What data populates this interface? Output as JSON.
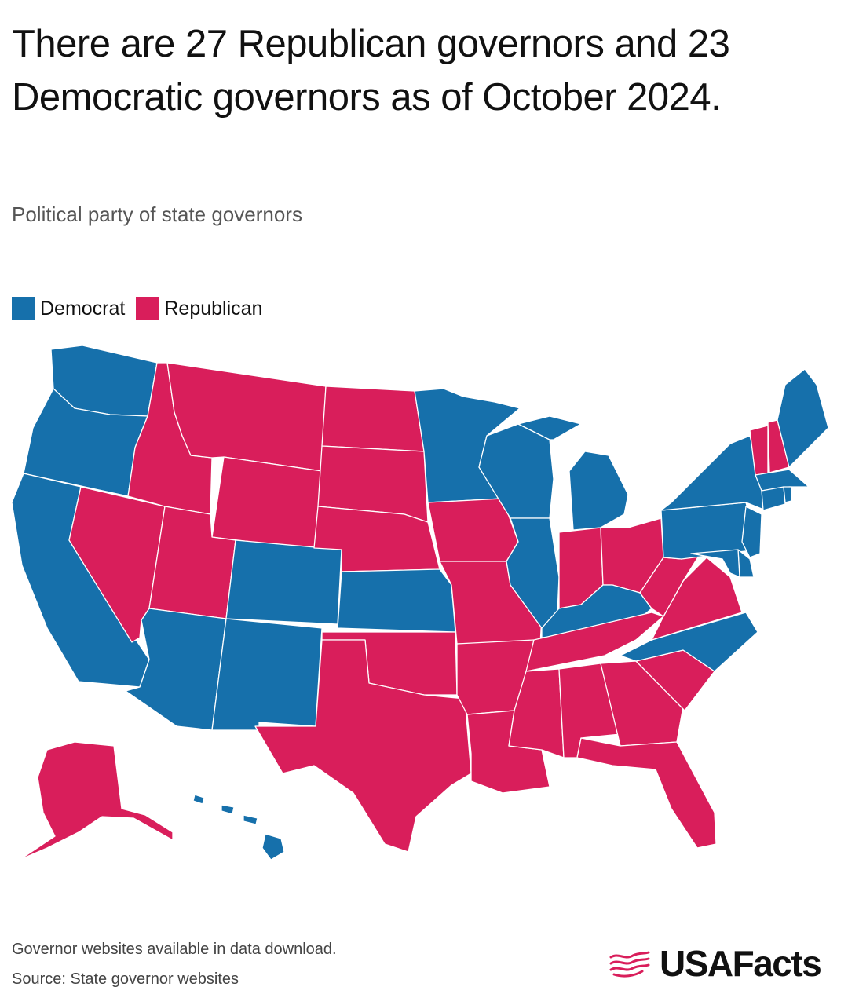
{
  "title": "There are 27 Republican governors and 23 Democratic governors as of October 2024.",
  "subtitle": "Political party of state governors",
  "legend": {
    "democrat": "Democrat",
    "republican": "Republican"
  },
  "colors": {
    "democrat": "#1670AB",
    "republican": "#D91E5B"
  },
  "states": {
    "WA": "D",
    "OR": "D",
    "CA": "D",
    "NV": "R",
    "ID": "R",
    "MT": "R",
    "WY": "R",
    "UT": "R",
    "AZ": "D",
    "NM": "D",
    "CO": "D",
    "ND": "R",
    "SD": "R",
    "NE": "R",
    "KS": "D",
    "OK": "R",
    "TX": "R",
    "MN": "D",
    "IA": "R",
    "MO": "R",
    "AR": "R",
    "LA": "R",
    "WI": "D",
    "IL": "D",
    "MI": "D",
    "IN": "R",
    "OH": "R",
    "KY": "D",
    "TN": "R",
    "MS": "R",
    "AL": "R",
    "GA": "R",
    "FL": "R",
    "SC": "R",
    "NC": "D",
    "VA": "R",
    "WV": "R",
    "PA": "D",
    "NY": "D",
    "VT": "R",
    "NH": "R",
    "ME": "D",
    "MA": "D",
    "RI": "D",
    "CT": "D",
    "NJ": "D",
    "DE": "D",
    "MD": "D",
    "AK": "R",
    "HI": "D"
  },
  "footer": {
    "note": "Governor websites available in data download.",
    "source": "Source: State governor websites"
  },
  "brand": {
    "name": "USAFacts"
  }
}
